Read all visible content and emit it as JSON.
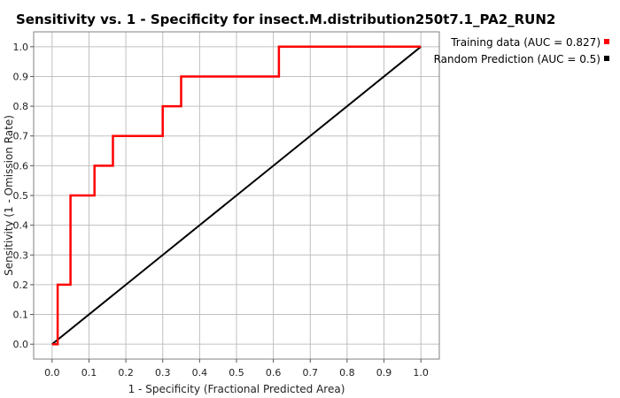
{
  "chart_data": {
    "type": "line",
    "title": "Sensitivity vs. 1 - Specificity for insect.M.distribution250t7.1_PA2_RUN2",
    "xlabel": "1 - Specificity  (Fractional Predicted Area)",
    "ylabel": "Sensitivity (1 - Omission Rate)",
    "xlim": [
      -0.05,
      1.05
    ],
    "ylim": [
      -0.05,
      1.05
    ],
    "grid": true,
    "legend_position": "top-right",
    "x_ticks": [
      "0.0",
      "0.1",
      "0.2",
      "0.3",
      "0.4",
      "0.5",
      "0.6",
      "0.7",
      "0.8",
      "0.9",
      "1.0"
    ],
    "y_ticks": [
      "0.0",
      "0.1",
      "0.2",
      "0.3",
      "0.4",
      "0.5",
      "0.6",
      "0.7",
      "0.8",
      "0.9",
      "1.0"
    ],
    "series": [
      {
        "name": "Training data (AUC = 0.827)",
        "color": "#ff0000",
        "x": [
          0.0,
          0.015,
          0.015,
          0.05,
          0.05,
          0.115,
          0.115,
          0.165,
          0.165,
          0.3,
          0.3,
          0.35,
          0.35,
          0.615,
          0.615,
          1.0
        ],
        "y": [
          0.0,
          0.0,
          0.2,
          0.2,
          0.5,
          0.5,
          0.6,
          0.6,
          0.7,
          0.7,
          0.8,
          0.8,
          0.9,
          0.9,
          1.0,
          1.0
        ]
      },
      {
        "name": "Random Prediction (AUC = 0.5)",
        "color": "#000000",
        "x": [
          0.0,
          1.0
        ],
        "y": [
          0.0,
          1.0
        ]
      }
    ]
  }
}
